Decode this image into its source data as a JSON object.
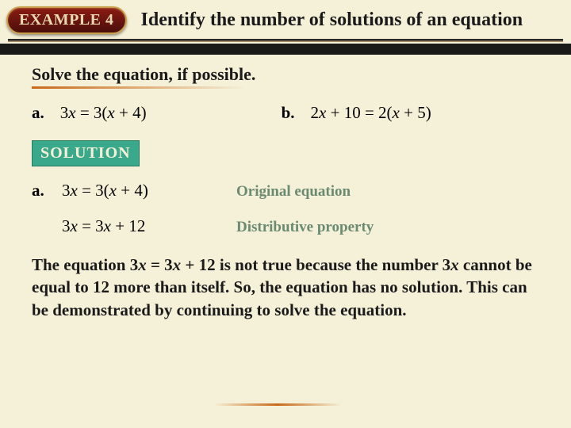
{
  "header": {
    "badge": "EXAMPLE 4",
    "title": "Identify the number of solutions of an equation"
  },
  "instruction": "Solve the equation, if possible.",
  "problems": {
    "a": {
      "label": "a.",
      "lhs_coef": "3",
      "lhs_var": "x",
      "rhs": " = 3(",
      "rhs_inner_var": "x",
      "rhs_tail": " + 4)"
    },
    "b": {
      "label": "b.",
      "lhs_coef": "2",
      "lhs_var": "x",
      "lhs_tail": " + 10 = 2(",
      "rhs_inner_var": "x",
      "rhs_tail": " + 5)"
    }
  },
  "solution_label": "SOLUTION",
  "steps": [
    {
      "label": "a.",
      "eq_pre": "3",
      "eq_var1": "x",
      "eq_mid": " = 3(",
      "eq_var2": "x",
      "eq_post": " + 4)",
      "reason": "Original equation"
    },
    {
      "label": "",
      "eq_pre": "3",
      "eq_var1": "x",
      "eq_mid": " = 3",
      "eq_var2": "x",
      "eq_post": " + 12",
      "reason": "Distributive property"
    }
  ],
  "explanation": {
    "t1": "The equation 3",
    "v1": "x",
    "t2": " = 3",
    "v2": "x",
    "t3": " + 12 is not true because the number 3",
    "v3": "x",
    "t4": " cannot be equal to 12 more than itself. So, the equation has no solution. This can be demonstrated by continuing to solve the equation."
  },
  "colors": {
    "background": "#f5f0d8",
    "badge_border": "#c9a04a",
    "badge_fill_top": "#8a1a12",
    "badge_fill_bottom": "#4a0e0a",
    "badge_text": "#e8d8b0",
    "solution_fill": "#3aa88a",
    "reason_text": "#6a8a72",
    "orange_rule": "#c96a1a"
  }
}
